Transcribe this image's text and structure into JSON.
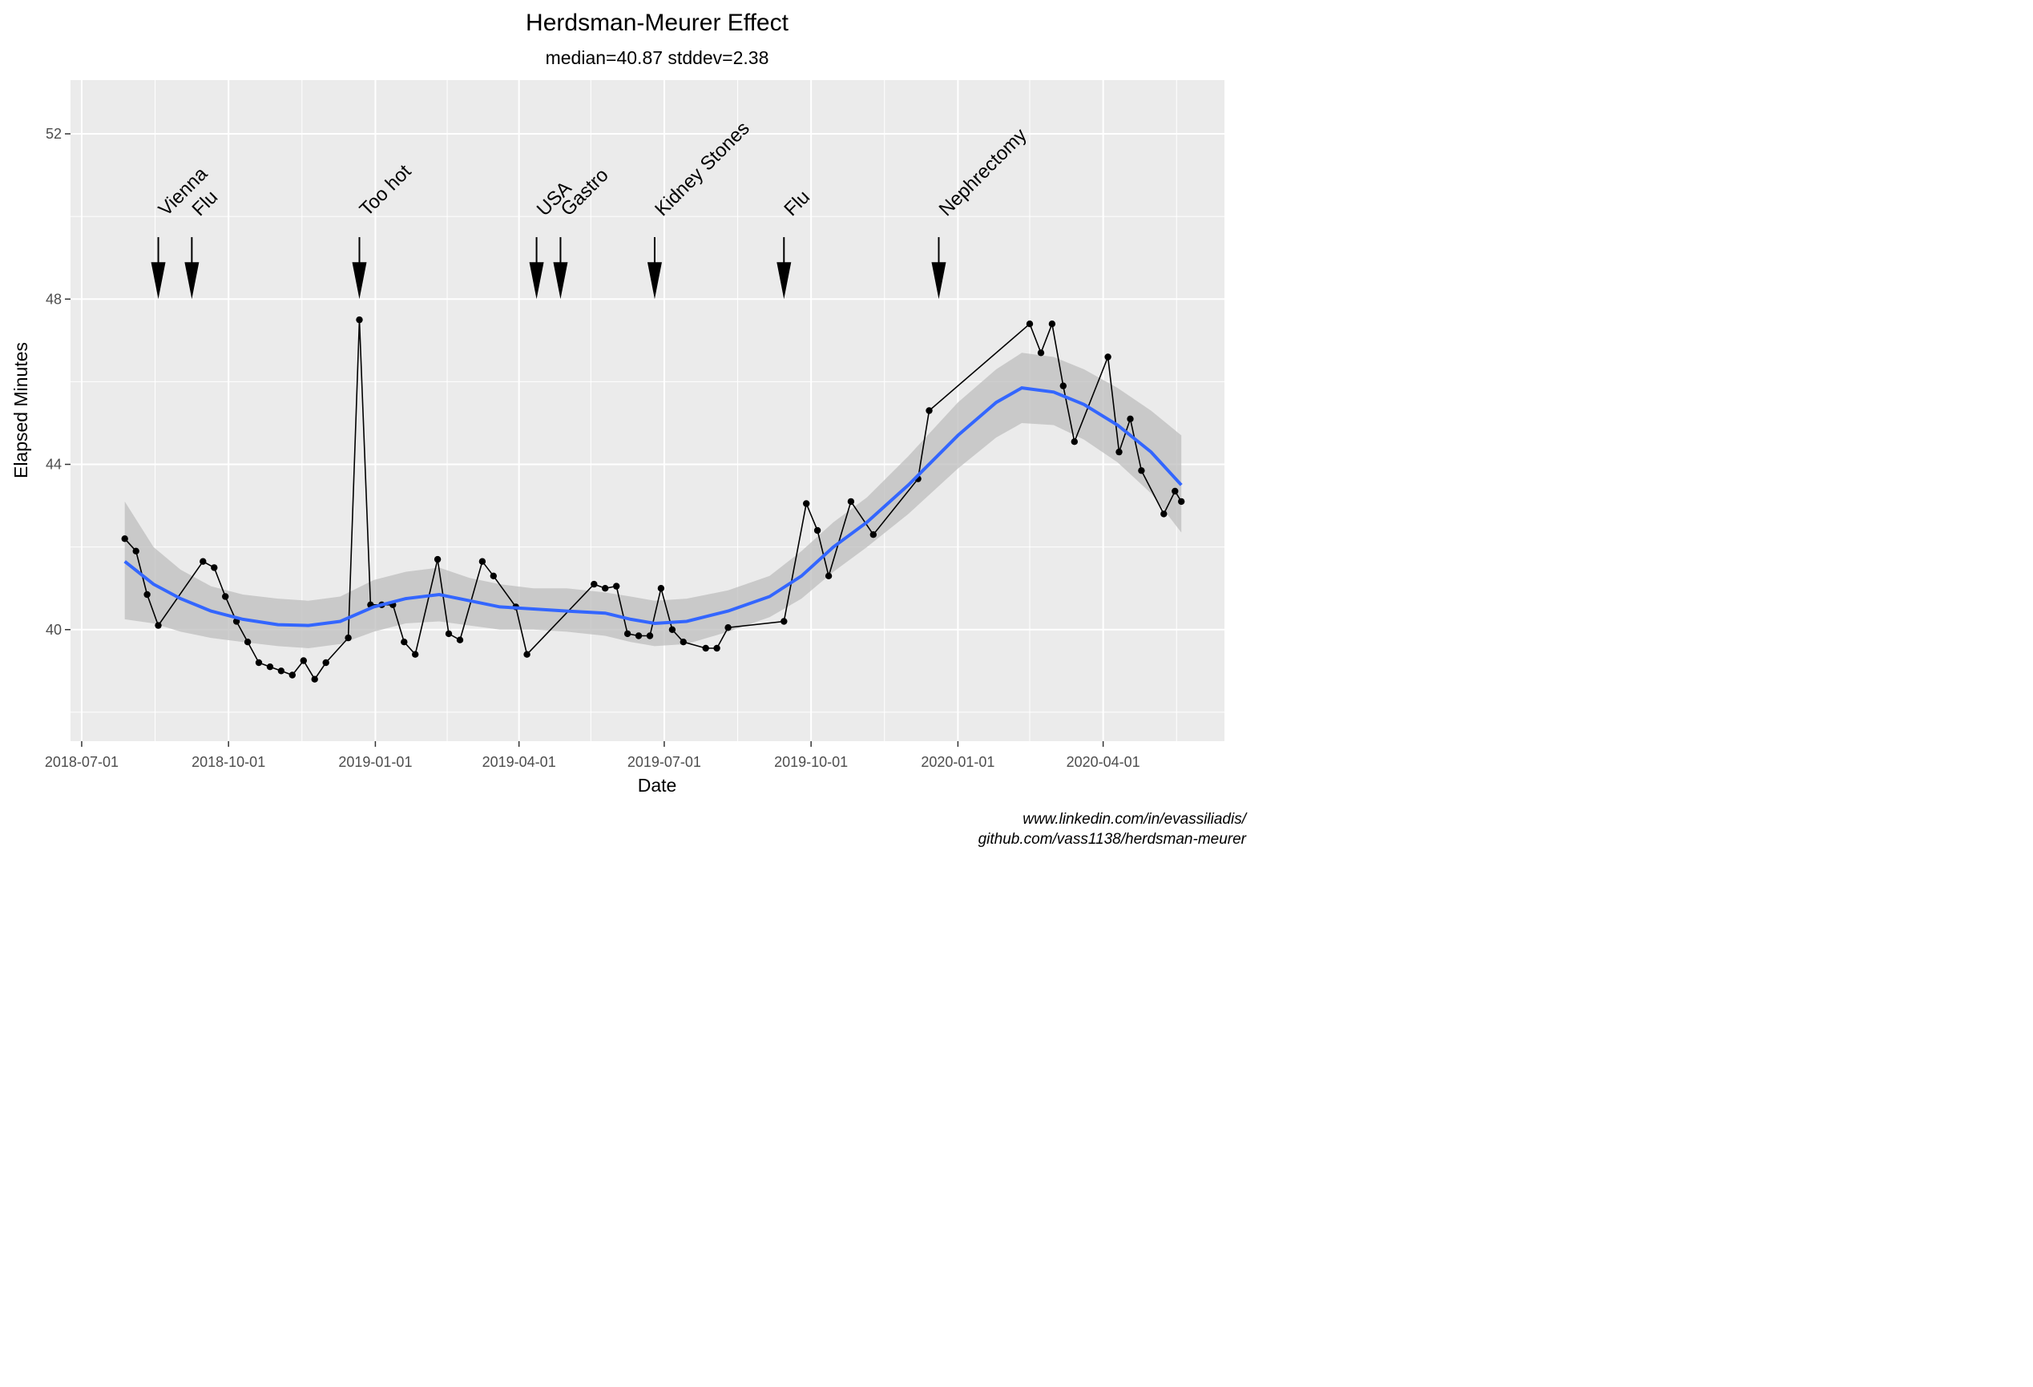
{
  "chart_data": {
    "type": "line",
    "title": "Herdsman-Meurer Effect",
    "subtitle": "median=40.87 stddev=2.38",
    "xlabel": "Date",
    "ylabel": "Elapsed Minutes",
    "x_axis": {
      "type": "date",
      "range": [
        "2018-06-24",
        "2020-06-16"
      ],
      "ticks": [
        "2018-07-01",
        "2018-10-01",
        "2019-01-01",
        "2019-04-01",
        "2019-07-01",
        "2019-10-01",
        "2020-01-01",
        "2020-04-01"
      ]
    },
    "y_axis": {
      "range": [
        37.3,
        53.3
      ],
      "ticks": [
        40,
        44,
        48,
        52
      ]
    },
    "grid": true,
    "colors": {
      "panel": "#ebebeb",
      "grid": "#ffffff",
      "line": "#000000",
      "point": "#000000",
      "smooth": "#3366ff",
      "band": "#bdbdbd"
    },
    "series": [
      {
        "type": "line-points",
        "points": [
          [
            "2018-07-28",
            42.2
          ],
          [
            "2018-08-04",
            41.9
          ],
          [
            "2018-08-11",
            40.85
          ],
          [
            "2018-08-18",
            40.1
          ],
          [
            "2018-09-15",
            41.65
          ],
          [
            "2018-09-22",
            41.5
          ],
          [
            "2018-09-29",
            40.8
          ],
          [
            "2018-10-06",
            40.2
          ],
          [
            "2018-10-13",
            39.7
          ],
          [
            "2018-10-20",
            39.2
          ],
          [
            "2018-10-27",
            39.1
          ],
          [
            "2018-11-03",
            39.0
          ],
          [
            "2018-11-10",
            38.9
          ],
          [
            "2018-11-17",
            39.25
          ],
          [
            "2018-11-24",
            38.8
          ],
          [
            "2018-12-01",
            39.2
          ],
          [
            "2018-12-15",
            39.8
          ],
          [
            "2018-12-22",
            47.5
          ],
          [
            "2018-12-29",
            40.6
          ],
          [
            "2019-01-05",
            40.6
          ],
          [
            "2019-01-12",
            40.6
          ],
          [
            "2019-01-19",
            39.7
          ],
          [
            "2019-01-26",
            39.4
          ],
          [
            "2019-02-09",
            41.7
          ],
          [
            "2019-02-16",
            39.9
          ],
          [
            "2019-02-23",
            39.75
          ],
          [
            "2019-03-09",
            41.65
          ],
          [
            "2019-03-16",
            41.3
          ],
          [
            "2019-03-30",
            40.55
          ],
          [
            "2019-04-06",
            39.4
          ],
          [
            "2019-05-18",
            41.1
          ],
          [
            "2019-05-25",
            41.0
          ],
          [
            "2019-06-01",
            41.05
          ],
          [
            "2019-06-08",
            39.9
          ],
          [
            "2019-06-15",
            39.85
          ],
          [
            "2019-06-22",
            39.85
          ],
          [
            "2019-06-29",
            41.0
          ],
          [
            "2019-07-06",
            40.0
          ],
          [
            "2019-07-13",
            39.7
          ],
          [
            "2019-07-27",
            39.55
          ],
          [
            "2019-08-03",
            39.55
          ],
          [
            "2019-08-10",
            40.05
          ],
          [
            "2019-09-14",
            40.2
          ],
          [
            "2019-09-28",
            43.05
          ],
          [
            "2019-10-05",
            42.4
          ],
          [
            "2019-10-12",
            41.3
          ],
          [
            "2019-10-26",
            43.1
          ],
          [
            "2019-11-09",
            42.3
          ],
          [
            "2019-12-07",
            43.65
          ],
          [
            "2019-12-14",
            45.3
          ],
          [
            "2020-02-15",
            47.4
          ],
          [
            "2020-02-22",
            46.7
          ],
          [
            "2020-02-29",
            47.4
          ],
          [
            "2020-03-07",
            45.9
          ],
          [
            "2020-03-14",
            44.55
          ],
          [
            "2020-04-04",
            46.6
          ],
          [
            "2020-04-11",
            44.3
          ],
          [
            "2020-04-18",
            45.1
          ],
          [
            "2020-04-25",
            43.85
          ],
          [
            "2020-05-09",
            42.8
          ],
          [
            "2020-05-16",
            43.35
          ],
          [
            "2020-05-20",
            43.1
          ]
        ]
      },
      {
        "type": "smooth",
        "points": [
          [
            "2018-07-28",
            41.65
          ],
          [
            "2018-08-15",
            41.1
          ],
          [
            "2018-09-01",
            40.75
          ],
          [
            "2018-09-20",
            40.45
          ],
          [
            "2018-10-10",
            40.25
          ],
          [
            "2018-11-01",
            40.12
          ],
          [
            "2018-11-20",
            40.1
          ],
          [
            "2018-12-10",
            40.2
          ],
          [
            "2018-12-31",
            40.55
          ],
          [
            "2019-01-20",
            40.75
          ],
          [
            "2019-02-10",
            40.85
          ],
          [
            "2019-03-01",
            40.7
          ],
          [
            "2019-03-20",
            40.55
          ],
          [
            "2019-04-10",
            40.5
          ],
          [
            "2019-05-01",
            40.45
          ],
          [
            "2019-05-25",
            40.4
          ],
          [
            "2019-06-10",
            40.25
          ],
          [
            "2019-06-25",
            40.15
          ],
          [
            "2019-07-15",
            40.2
          ],
          [
            "2019-08-10",
            40.45
          ],
          [
            "2019-09-05",
            40.8
          ],
          [
            "2019-09-25",
            41.3
          ],
          [
            "2019-10-15",
            42.0
          ],
          [
            "2019-11-05",
            42.6
          ],
          [
            "2019-12-01",
            43.5
          ],
          [
            "2020-01-01",
            44.7
          ],
          [
            "2020-01-25",
            45.5
          ],
          [
            "2020-02-10",
            45.85
          ],
          [
            "2020-03-01",
            45.75
          ],
          [
            "2020-03-20",
            45.45
          ],
          [
            "2020-04-10",
            44.95
          ],
          [
            "2020-05-01",
            44.3
          ],
          [
            "2020-05-20",
            43.5
          ]
        ],
        "band_upper": [
          [
            "2018-07-28",
            43.1
          ],
          [
            "2018-08-15",
            42.0
          ],
          [
            "2018-09-01",
            41.45
          ],
          [
            "2018-09-20",
            41.05
          ],
          [
            "2018-10-10",
            40.85
          ],
          [
            "2018-11-01",
            40.75
          ],
          [
            "2018-11-20",
            40.7
          ],
          [
            "2018-12-10",
            40.8
          ],
          [
            "2018-12-31",
            41.2
          ],
          [
            "2019-01-20",
            41.4
          ],
          [
            "2019-02-10",
            41.5
          ],
          [
            "2019-03-01",
            41.25
          ],
          [
            "2019-03-20",
            41.1
          ],
          [
            "2019-04-10",
            41.0
          ],
          [
            "2019-05-01",
            41.0
          ],
          [
            "2019-05-25",
            40.9
          ],
          [
            "2019-06-10",
            40.8
          ],
          [
            "2019-06-25",
            40.7
          ],
          [
            "2019-07-15",
            40.75
          ],
          [
            "2019-08-10",
            40.95
          ],
          [
            "2019-09-05",
            41.3
          ],
          [
            "2019-09-25",
            41.9
          ],
          [
            "2019-10-15",
            42.6
          ],
          [
            "2019-11-05",
            43.2
          ],
          [
            "2019-12-01",
            44.2
          ],
          [
            "2020-01-01",
            45.5
          ],
          [
            "2020-01-25",
            46.3
          ],
          [
            "2020-02-10",
            46.7
          ],
          [
            "2020-03-01",
            46.6
          ],
          [
            "2020-03-20",
            46.3
          ],
          [
            "2020-04-10",
            45.85
          ],
          [
            "2020-05-01",
            45.3
          ],
          [
            "2020-05-20",
            44.7
          ]
        ],
        "band_lower": [
          [
            "2018-07-28",
            40.25
          ],
          [
            "2018-08-15",
            40.15
          ],
          [
            "2018-09-01",
            39.95
          ],
          [
            "2018-09-20",
            39.8
          ],
          [
            "2018-10-10",
            39.7
          ],
          [
            "2018-11-01",
            39.6
          ],
          [
            "2018-11-20",
            39.55
          ],
          [
            "2018-12-10",
            39.65
          ],
          [
            "2018-12-31",
            39.95
          ],
          [
            "2019-01-20",
            40.15
          ],
          [
            "2019-02-10",
            40.2
          ],
          [
            "2019-03-01",
            40.1
          ],
          [
            "2019-03-20",
            40.0
          ],
          [
            "2019-04-10",
            40.0
          ],
          [
            "2019-05-01",
            39.95
          ],
          [
            "2019-05-25",
            39.85
          ],
          [
            "2019-06-10",
            39.7
          ],
          [
            "2019-06-25",
            39.6
          ],
          [
            "2019-07-15",
            39.65
          ],
          [
            "2019-08-10",
            39.95
          ],
          [
            "2019-09-05",
            40.3
          ],
          [
            "2019-09-25",
            40.75
          ],
          [
            "2019-10-15",
            41.4
          ],
          [
            "2019-11-05",
            42.0
          ],
          [
            "2019-12-01",
            42.8
          ],
          [
            "2020-01-01",
            43.9
          ],
          [
            "2020-01-25",
            44.65
          ],
          [
            "2020-02-10",
            45.0
          ],
          [
            "2020-03-01",
            44.95
          ],
          [
            "2020-03-20",
            44.6
          ],
          [
            "2020-04-10",
            44.05
          ],
          [
            "2020-05-01",
            43.3
          ],
          [
            "2020-05-20",
            42.35
          ]
        ]
      }
    ],
    "annotations": [
      {
        "label": "Vienna",
        "x": "2018-08-18"
      },
      {
        "label": "Flu",
        "x": "2018-09-08"
      },
      {
        "label": "Too hot",
        "x": "2018-12-22"
      },
      {
        "label": "USA",
        "x": "2019-04-12"
      },
      {
        "label": "Gastro",
        "x": "2019-04-27"
      },
      {
        "label": "Kidney Stones",
        "x": "2019-06-25"
      },
      {
        "label": "Flu",
        "x": "2019-09-14"
      },
      {
        "label": "Nephrectomy",
        "x": "2019-12-20"
      }
    ],
    "annotation_arrow": {
      "from": 49.5,
      "to": 48.0
    },
    "caption": [
      "www.linkedin.com/in/evassiliadis/",
      "github.com/vass1138/herdsman-meurer"
    ]
  }
}
